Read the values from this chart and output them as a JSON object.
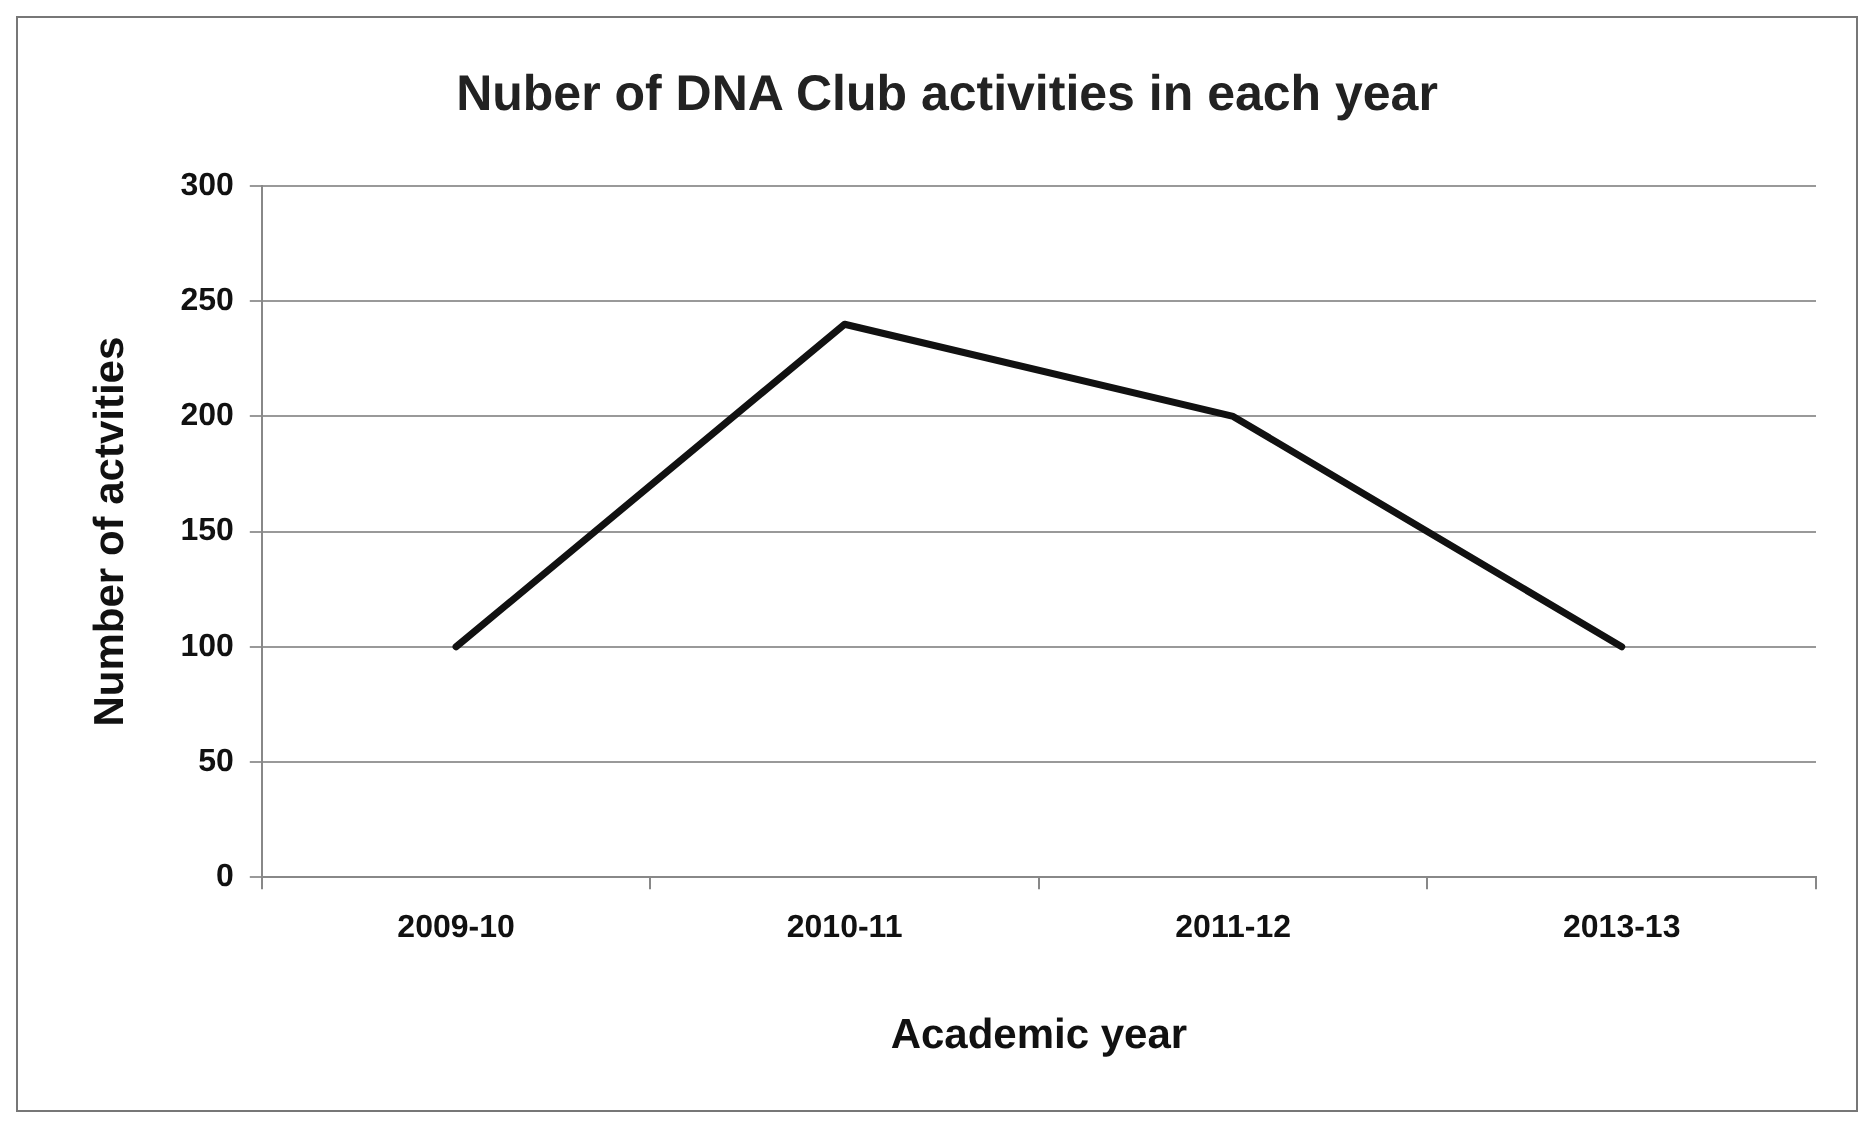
{
  "chart_data": {
    "type": "line",
    "title": "Nuber of DNA Club activities in each year",
    "xlabel": "Academic year",
    "ylabel": "Number of actvities",
    "categories": [
      "2009-10",
      "2010-11",
      "2011-12",
      "2013-13"
    ],
    "series": [
      {
        "color": "#111111",
        "values": [
          100,
          240,
          200,
          100
        ]
      }
    ],
    "ylim": [
      0,
      300
    ],
    "yticks": [
      0,
      50,
      100,
      150,
      200,
      250,
      300
    ],
    "grid": "y",
    "legend": false,
    "marker": "none",
    "line_style": "solid"
  }
}
